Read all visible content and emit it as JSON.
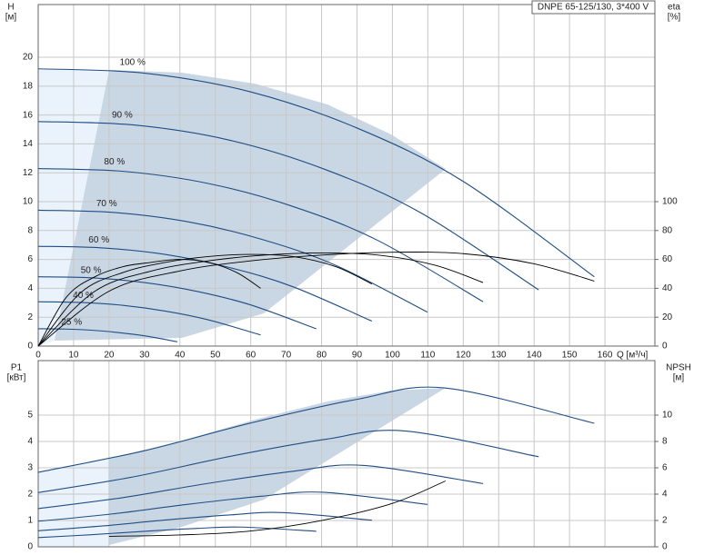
{
  "chart_data": [
    {
      "type": "line",
      "title": "DNPE 65-125/130, 3*400 V",
      "xlabel": "Q [м³/ч]",
      "ylabel": "H",
      "yunit": "[м]",
      "y2label": "eta",
      "y2unit": "[%]",
      "xlim": [
        0,
        174.1
      ],
      "xticks": [
        0,
        10,
        20,
        30,
        40,
        50,
        60,
        70,
        80,
        90,
        100,
        110,
        120,
        130,
        140,
        150,
        160
      ],
      "ylim": [
        0,
        23.65
      ],
      "yticks": [
        0,
        2,
        4,
        6,
        8,
        10,
        12,
        14,
        16,
        18,
        20
      ],
      "y2lim": [
        0,
        236.5
      ],
      "y2ticks": [
        0,
        20,
        40,
        60,
        80,
        100
      ],
      "grid": true,
      "series": [
        {
          "name": "100 %",
          "color": "#1f4e84",
          "x": [
            0,
            30,
            60,
            90,
            120,
            157
          ],
          "values": [
            19.2,
            18.9,
            17.6,
            15.1,
            11.4,
            4.8
          ]
        },
        {
          "name": "90 %",
          "color": "#1f4e84",
          "x": [
            0,
            27,
            54,
            81,
            108,
            141.3
          ],
          "values": [
            15.55,
            15.31,
            14.26,
            12.23,
            9.23,
            3.89
          ]
        },
        {
          "name": "80 %",
          "color": "#1f4e84",
          "x": [
            0,
            24,
            48,
            72,
            96,
            125.6
          ],
          "values": [
            12.29,
            12.1,
            11.26,
            9.66,
            7.3,
            3.07
          ]
        },
        {
          "name": "70 %",
          "color": "#1f4e84",
          "x": [
            0,
            21,
            42,
            63,
            84,
            109.9
          ],
          "values": [
            9.41,
            9.26,
            8.62,
            7.4,
            5.59,
            2.35
          ]
        },
        {
          "name": "60 %",
          "color": "#1f4e84",
          "x": [
            0,
            18,
            36,
            54,
            72,
            94.2
          ],
          "values": [
            6.91,
            6.8,
            6.34,
            5.44,
            4.1,
            1.73
          ]
        },
        {
          "name": "50 %",
          "color": "#1f4e84",
          "x": [
            0,
            15,
            30,
            45,
            60,
            78.5
          ],
          "values": [
            4.8,
            4.73,
            4.4,
            3.78,
            2.85,
            1.2
          ]
        },
        {
          "name": "40 %",
          "color": "#1f4e84",
          "x": [
            0,
            12,
            24,
            36,
            48,
            62.8
          ],
          "values": [
            3.07,
            3.02,
            2.82,
            2.42,
            1.82,
            0.77
          ]
        },
        {
          "name": "25 %",
          "color": "#1f4e84",
          "x": [
            0,
            7.5,
            15,
            22.5,
            30,
            39.3
          ],
          "values": [
            1.2,
            1.18,
            1.1,
            0.94,
            0.71,
            0.3
          ]
        },
        {
          "color": "#000000",
          "axis": "y2",
          "x": [
            0,
            20,
            40,
            60,
            80,
            100,
            120,
            140,
            157
          ],
          "values": [
            0,
            38,
            52,
            59,
            63,
            65,
            64,
            57,
            45
          ]
        },
        {
          "color": "#000000",
          "axis": "y2",
          "x": [
            0,
            16,
            32,
            48,
            64,
            80,
            96,
            112,
            125.6
          ],
          "values": [
            0,
            38,
            52,
            59,
            63,
            64.5,
            63,
            56,
            44
          ]
        },
        {
          "color": "#000000",
          "axis": "y2",
          "x": [
            0,
            12,
            24,
            36,
            48,
            60,
            72,
            84,
            94.2
          ],
          "values": [
            0,
            37,
            51,
            58,
            62,
            63.5,
            62,
            55,
            43
          ]
        },
        {
          "color": "#000000",
          "axis": "y2",
          "x": [
            0,
            8,
            16,
            24,
            32,
            40,
            48,
            56,
            62.8
          ],
          "values": [
            0,
            34,
            48,
            55,
            58,
            60,
            58,
            51,
            40
          ]
        }
      ]
    },
    {
      "type": "line",
      "ylabel": "P1",
      "yunit": "[кВт]",
      "y2label": "NPSH",
      "y2unit": "[м]",
      "xlim": [
        0,
        174.1
      ],
      "ylim": [
        0,
        7.07
      ],
      "yticks": [
        0,
        1,
        2,
        3,
        4,
        5
      ],
      "y2lim": [
        0,
        14.14
      ],
      "y2ticks": [
        0,
        2,
        4,
        6,
        8,
        10
      ],
      "grid": true,
      "series": [
        {
          "color": "#1f4e84",
          "x": [
            0,
            30,
            60,
            90,
            115,
            157
          ],
          "values": [
            2.83,
            3.65,
            4.7,
            5.6,
            6.03,
            4.69
          ]
        },
        {
          "color": "#1f4e84",
          "x": [
            0,
            27,
            54,
            81,
            103.5,
            141.3
          ],
          "values": [
            2.06,
            2.66,
            3.43,
            4.08,
            4.4,
            3.42
          ]
        },
        {
          "color": "#1f4e84",
          "x": [
            0,
            24,
            48,
            72,
            92,
            125.6
          ],
          "values": [
            1.45,
            1.87,
            2.41,
            2.87,
            3.09,
            2.4
          ]
        },
        {
          "color": "#1f4e84",
          "x": [
            0,
            21,
            42,
            63,
            80.5,
            109.9
          ],
          "values": [
            0.97,
            1.25,
            1.61,
            1.92,
            2.07,
            1.61
          ]
        },
        {
          "color": "#1f4e84",
          "x": [
            0,
            18,
            36,
            54,
            69,
            94.2
          ],
          "values": [
            0.61,
            0.79,
            1.02,
            1.21,
            1.3,
            1.01
          ]
        },
        {
          "color": "#1f4e84",
          "x": [
            0,
            15,
            30,
            45,
            57.5,
            78.5
          ],
          "values": [
            0.35,
            0.46,
            0.59,
            0.7,
            0.75,
            0.59
          ]
        },
        {
          "color": "#000000",
          "axis": "y2",
          "x": [
            20,
            40,
            60,
            80,
            100,
            115
          ],
          "values": [
            0.8,
            0.9,
            1.2,
            2.0,
            3.3,
            5.0
          ]
        }
      ]
    }
  ]
}
